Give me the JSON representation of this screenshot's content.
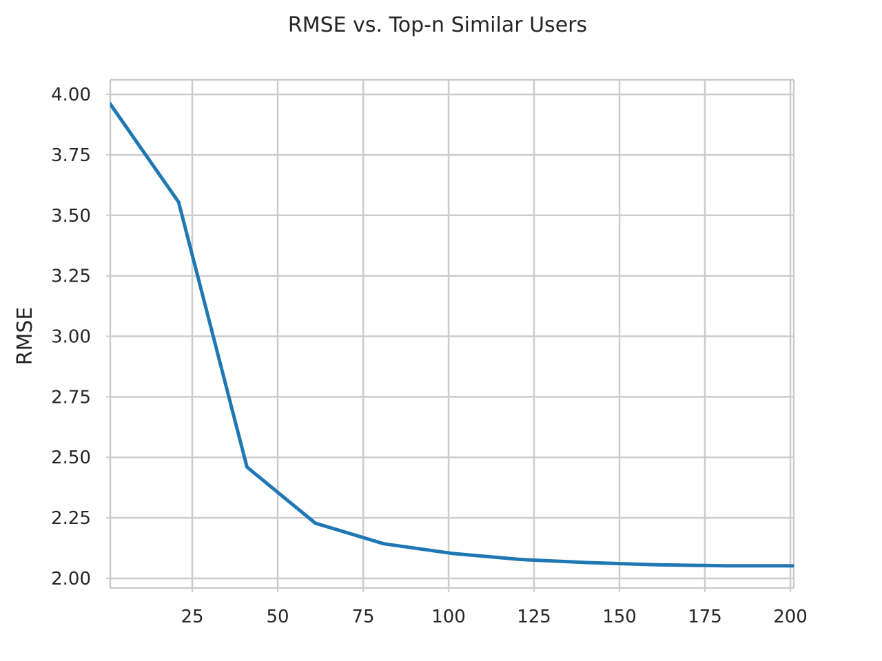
{
  "chart_data": {
    "type": "line",
    "title": "RMSE vs. Top-n Similar Users",
    "xlabel": "",
    "ylabel": "RMSE",
    "xlim": [
      1,
      201
    ],
    "ylim": [
      1.96,
      4.06
    ],
    "xticks": [
      25,
      50,
      75,
      100,
      125,
      150,
      175,
      200
    ],
    "yticks": [
      2.0,
      2.25,
      2.5,
      2.75,
      3.0,
      3.25,
      3.5,
      3.75,
      4.0
    ],
    "ytick_labels": [
      "2.00",
      "2.25",
      "2.50",
      "2.75",
      "3.00",
      "3.25",
      "3.50",
      "3.75",
      "4.00"
    ],
    "grid": true,
    "series": [
      {
        "color": "#1f77b4",
        "x": [
          1,
          21,
          41,
          61,
          81,
          101,
          121,
          141,
          161,
          181,
          201
        ],
        "y": [
          3.96,
          3.555,
          2.46,
          2.228,
          2.143,
          2.103,
          2.078,
          2.065,
          2.056,
          2.052,
          2.052
        ]
      }
    ]
  }
}
